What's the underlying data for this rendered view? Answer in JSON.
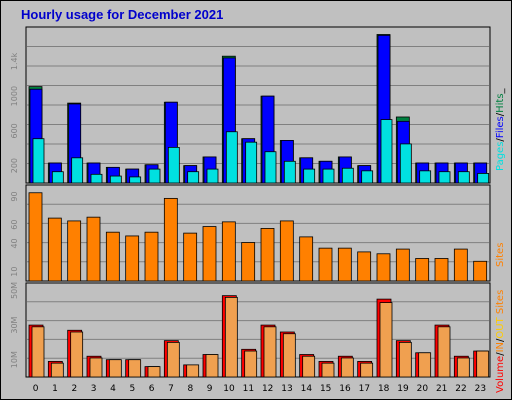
{
  "title": "Hourly usage for December 2021",
  "colors": {
    "background": "#c0c0c0",
    "grid": "#808080",
    "title": "#0000cc",
    "hits": "#008040",
    "files": "#0000ff",
    "pages": "#00e0e0",
    "sites": "#ff8000",
    "volume": "#ff0000",
    "kb_in": "#ff8000",
    "kb_out": "#ffcc00"
  },
  "chart_data": [
    {
      "type": "bar",
      "panel": "hits-files-pages",
      "categories": [
        "0",
        "1",
        "2",
        "3",
        "4",
        "5",
        "6",
        "7",
        "8",
        "9",
        "10",
        "11",
        "12",
        "13",
        "14",
        "15",
        "16",
        "17",
        "18",
        "19",
        "20",
        "21",
        "22",
        "23"
      ],
      "series": [
        {
          "name": "Hits",
          "values": [
            1110,
            230,
            920,
            230,
            180,
            160,
            210,
            930,
            200,
            300,
            1460,
            510,
            1000,
            490,
            290,
            250,
            300,
            200,
            1710,
            760,
            230,
            230,
            230,
            230
          ]
        },
        {
          "name": "Files",
          "values": [
            1080,
            230,
            910,
            230,
            180,
            160,
            210,
            930,
            200,
            300,
            1440,
            510,
            1000,
            490,
            290,
            250,
            300,
            200,
            1700,
            710,
            230,
            230,
            230,
            230
          ]
        },
        {
          "name": "Pages",
          "values": [
            510,
            130,
            290,
            100,
            80,
            70,
            160,
            410,
            130,
            160,
            590,
            470,
            360,
            250,
            160,
            160,
            170,
            140,
            730,
            450,
            140,
            130,
            130,
            110
          ]
        }
      ],
      "ylabels": [
        "200",
        "600",
        "1000",
        "1.4k"
      ],
      "ylim": [
        0,
        1750
      ],
      "legend": [
        "Pages",
        "/",
        "Files",
        "/",
        "Hits",
        "_"
      ]
    },
    {
      "type": "bar",
      "panel": "sites",
      "categories": [
        "0",
        "1",
        "2",
        "3",
        "4",
        "5",
        "6",
        "7",
        "8",
        "9",
        "10",
        "11",
        "12",
        "13",
        "14",
        "15",
        "16",
        "17",
        "18",
        "19",
        "20",
        "21",
        "22",
        "23"
      ],
      "series": [
        {
          "name": "Sites",
          "values": [
            94,
            67,
            64,
            68,
            52,
            48,
            52,
            88,
            51,
            58,
            63,
            41,
            56,
            64,
            47,
            35,
            35,
            31,
            29,
            34,
            24,
            24,
            34,
            21
          ]
        }
      ],
      "ylabels": [
        "10",
        "40",
        "60",
        "90"
      ],
      "ylim": [
        0,
        98
      ],
      "legend": [
        "Sites"
      ]
    },
    {
      "type": "bar",
      "panel": "volume",
      "categories": [
        "0",
        "1",
        "2",
        "3",
        "4",
        "5",
        "6",
        "7",
        "8",
        "9",
        "10",
        "11",
        "12",
        "13",
        "14",
        "15",
        "16",
        "17",
        "18",
        "19",
        "20",
        "21",
        "22",
        "23"
      ],
      "series": [
        {
          "name": "Volume",
          "values": [
            30,
            9,
            27,
            12,
            10,
            10,
            6,
            21,
            7,
            13,
            47,
            16,
            30,
            26,
            13,
            9,
            12,
            9,
            45,
            21,
            14,
            30,
            12,
            15
          ]
        },
        {
          "name": "IN",
          "values": [
            29,
            8,
            26,
            11,
            10,
            10,
            6,
            20,
            7,
            13,
            46,
            15,
            29,
            25,
            12,
            8,
            11,
            8,
            43,
            20,
            14,
            29,
            11,
            15
          ]
        }
      ],
      "ylabels": [
        "10M",
        "30M",
        "50M"
      ],
      "ylim": [
        0,
        52
      ],
      "legend": [
        "Volume",
        "/",
        "IN",
        "/",
        "OUT",
        "Sites"
      ]
    }
  ]
}
